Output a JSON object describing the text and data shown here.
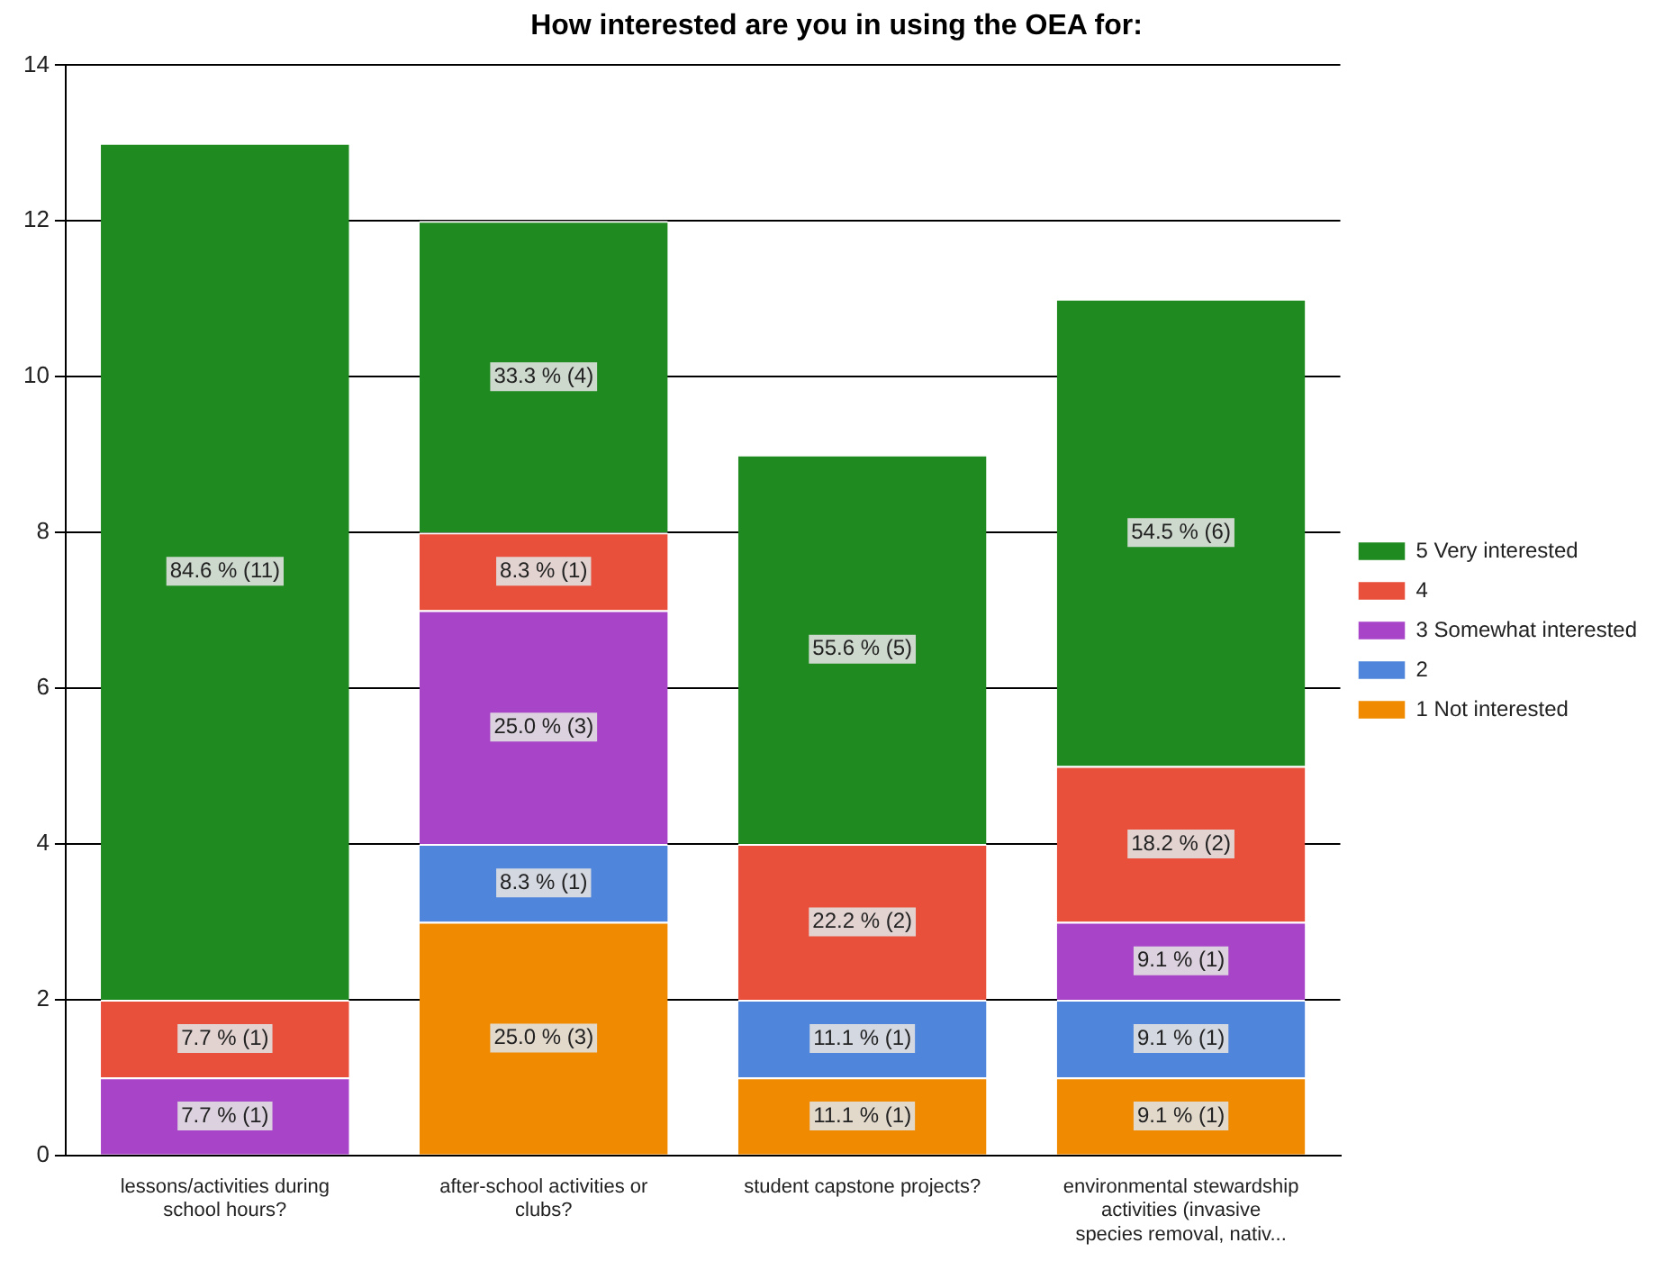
{
  "chart_data": {
    "type": "bar",
    "title": "How interested are you in using the OEA for:",
    "stacked": true,
    "categories": [
      "lessons/activities during school hours?",
      "after-school activities or clubs?",
      "student capstone projects?",
      "environmental stewardship activities (invasive species removal, nativ..."
    ],
    "series": [
      {
        "name": "1 Not interested",
        "color": "#f08a00",
        "values": [
          0,
          3,
          1,
          1
        ],
        "value_labels": [
          null,
          "25.0 % (3)",
          "11.1 % (1)",
          "9.1 % (1)"
        ]
      },
      {
        "name": "2",
        "color": "#4f86dc",
        "values": [
          0,
          1,
          1,
          1
        ],
        "value_labels": [
          null,
          "8.3 % (1)",
          "11.1 % (1)",
          "9.1 % (1)"
        ]
      },
      {
        "name": "3 Somewhat interested",
        "color": "#a844c8",
        "values": [
          1,
          3,
          0,
          1
        ],
        "value_labels": [
          "7.7 % (1)",
          "25.0 % (3)",
          null,
          "9.1 % (1)"
        ]
      },
      {
        "name": "4",
        "color": "#e8503c",
        "values": [
          1,
          1,
          2,
          2
        ],
        "value_labels": [
          "7.7 % (1)",
          "8.3 % (1)",
          "22.2 % (2)",
          "18.2 % (2)"
        ]
      },
      {
        "name": "5 Very interested",
        "color": "#1f8a1f",
        "values": [
          11,
          4,
          5,
          6
        ],
        "value_labels": [
          "84.6 % (11)",
          "33.3 % (4)",
          "55.6 % (5)",
          "54.5 % (6)"
        ]
      }
    ],
    "ylim": [
      0,
      14
    ],
    "yticks": [
      0,
      2,
      4,
      6,
      8,
      10,
      12,
      14
    ],
    "grid": "y",
    "legend": "right"
  }
}
